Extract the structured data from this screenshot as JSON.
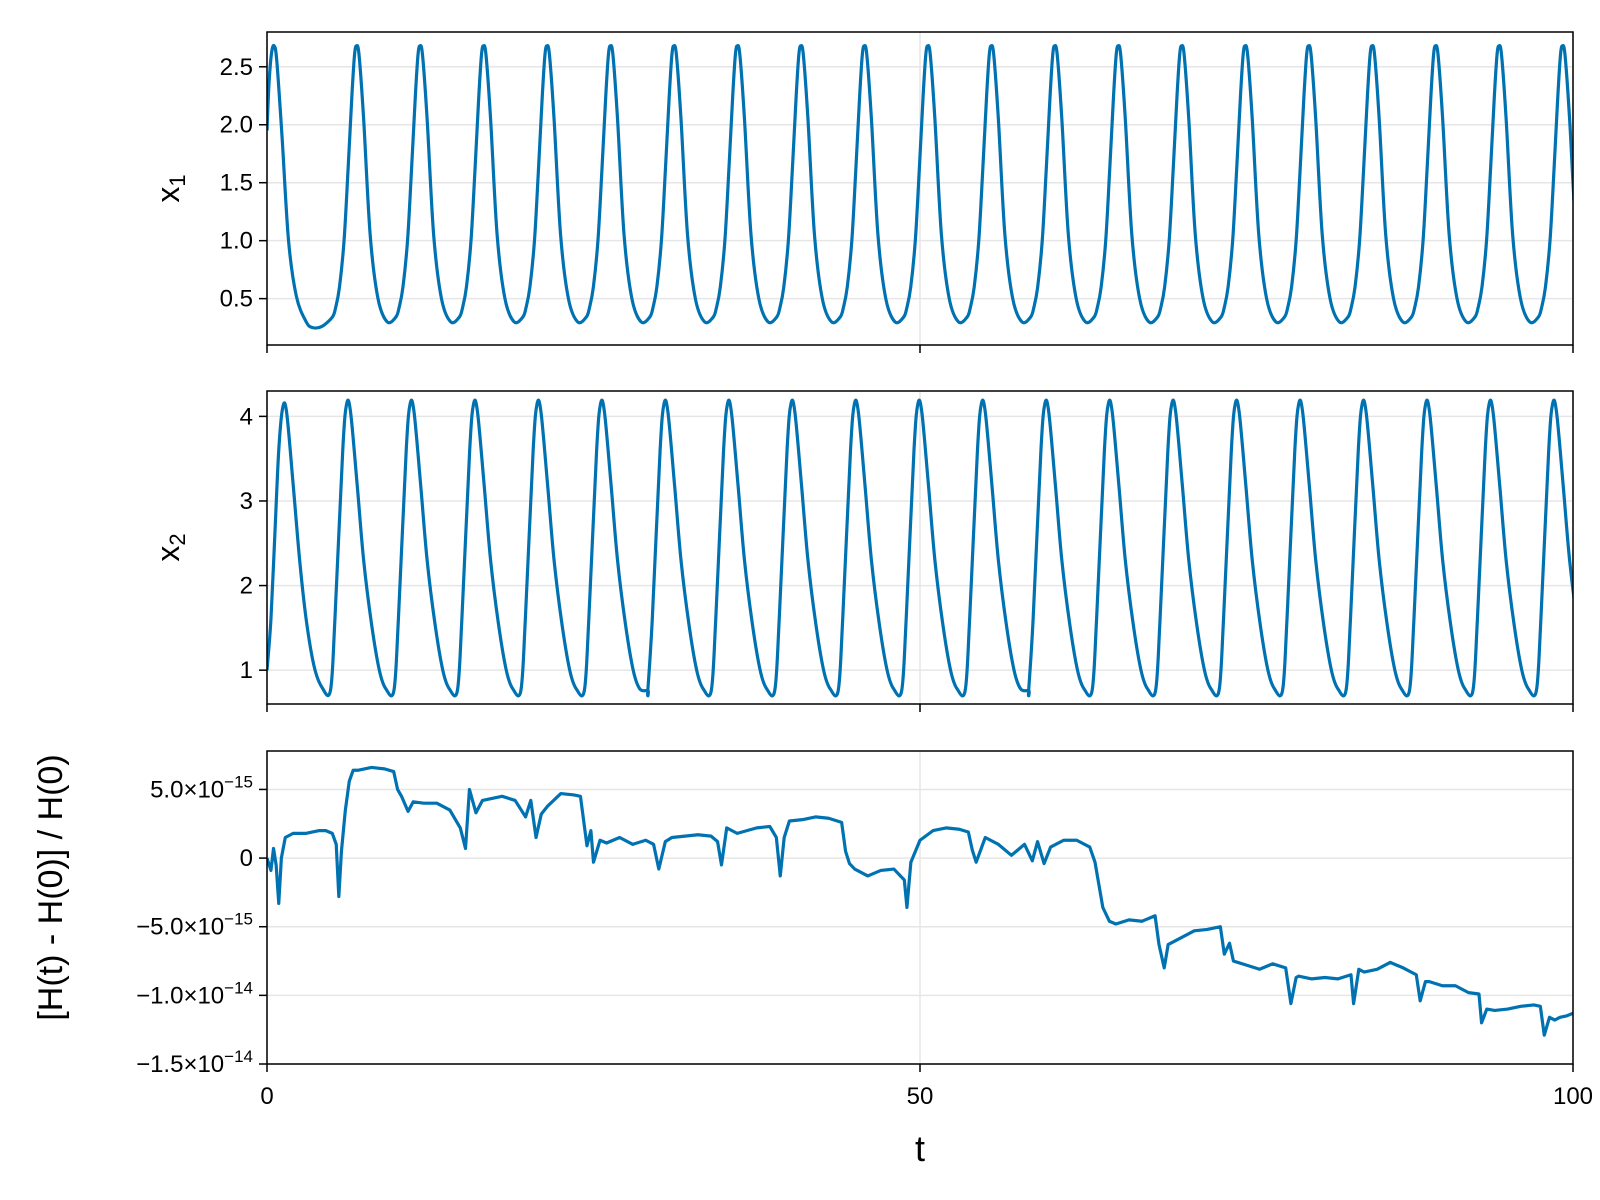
{
  "chart_data": [
    {
      "type": "line",
      "ylabel_base": "x",
      "ylabel_sub": "1",
      "xlim": [
        0,
        100
      ],
      "ylim": [
        0.1,
        2.8
      ],
      "xticks": [
        {
          "value": 0,
          "label": ""
        },
        {
          "value": 50,
          "label": ""
        },
        {
          "value": 100,
          "label": ""
        }
      ],
      "yticks": [
        {
          "value": 0.5,
          "label": "0.5"
        },
        {
          "value": 1.0,
          "label": "1.0"
        },
        {
          "value": 1.5,
          "label": "1.5"
        },
        {
          "value": 2.0,
          "label": "2.0"
        },
        {
          "value": 2.5,
          "label": "2.5"
        }
      ],
      "grid": true,
      "series": [
        {
          "color": "#0072b2",
          "x": [
            0,
            0.15,
            0.35,
            0.55,
            0.75,
            1.15,
            1.65,
            2.25,
            3.0,
            3.5,
            4.2,
            5.0,
            5.25,
            5.55,
            5.9,
            6.2,
            6.5,
            6.7,
            6.85,
            7.05,
            7.4,
            7.9,
            8.5,
            9.2,
            9.8,
            10.4,
            10.7
          ],
          "y": [
            1.95,
            2.35,
            2.62,
            2.68,
            2.55,
            1.9,
            1.0,
            0.52,
            0.3,
            0.25,
            0.26,
            0.34,
            0.42,
            0.6,
            1.0,
            1.6,
            2.25,
            2.6,
            2.68,
            2.6,
            2.05,
            1.05,
            0.5,
            0.3,
            0.25,
            0.27,
            0.34
          ],
          "period": 4.86,
          "peak_value": 2.68,
          "trough_value": 0.23
        }
      ]
    },
    {
      "type": "line",
      "ylabel_base": "x",
      "ylabel_sub": "2",
      "xlim": [
        0,
        100
      ],
      "ylim": [
        0.6,
        4.3
      ],
      "xticks": [
        {
          "value": 0,
          "label": ""
        },
        {
          "value": 50,
          "label": ""
        },
        {
          "value": 100,
          "label": ""
        }
      ],
      "yticks": [
        {
          "value": 1,
          "label": "1"
        },
        {
          "value": 2,
          "label": "2"
        },
        {
          "value": 3,
          "label": "3"
        },
        {
          "value": 4,
          "label": "4"
        }
      ],
      "grid": true,
      "series": [
        {
          "color": "#0072b2",
          "x": [
            0,
            0.3,
            0.6,
            0.9,
            1.2,
            1.5,
            2.0,
            2.5,
            3.0,
            3.6,
            4.2,
            4.86,
            5.2,
            5.8,
            6.1,
            6.4,
            6.9,
            7.4,
            8.0,
            8.6,
            9.1,
            9.72
          ],
          "y": [
            1.0,
            1.6,
            2.6,
            3.6,
            4.1,
            4.05,
            3.2,
            2.3,
            1.6,
            1.05,
            0.8,
            0.76,
            1.6,
            3.6,
            4.15,
            4.05,
            3.2,
            2.3,
            1.55,
            1.0,
            0.78,
            0.76
          ],
          "period": 4.86,
          "peak_value": 4.15,
          "trough_value": 0.76
        }
      ]
    },
    {
      "type": "line",
      "ylabel": "[H(t) - H(0)] / H(0)",
      "xlabel": "t",
      "xlim": [
        0,
        100
      ],
      "ylim": [
        -1.5e-14,
        7.8e-15
      ],
      "xticks": [
        {
          "value": 0,
          "label": "0"
        },
        {
          "value": 50,
          "label": "50"
        },
        {
          "value": 100,
          "label": "100"
        }
      ],
      "yticks": [
        {
          "value": -1.5e-14,
          "mant": "−1.5×10",
          "exp": "−14"
        },
        {
          "value": -1e-14,
          "mant": "−1.0×10",
          "exp": "−14"
        },
        {
          "value": -5e-15,
          "mant": "−5.0×10",
          "exp": "−15"
        },
        {
          "value": 0,
          "mant": "0",
          "exp": ""
        },
        {
          "value": 5e-15,
          "mant": "5.0×10",
          "exp": "−15"
        }
      ],
      "grid": true,
      "unit_scale": 1e-15,
      "series": [
        {
          "color": "#0072b2",
          "x": [
            0,
            0.3,
            0.5,
            0.7,
            0.9,
            1.1,
            1.4,
            2.0,
            3.0,
            4.0,
            4.5,
            5.0,
            5.3,
            5.5,
            5.7,
            6.0,
            6.3,
            6.6,
            7.0,
            8.0,
            9.0,
            9.7,
            10.0,
            10.3,
            10.8,
            11.2,
            12.0,
            13.0,
            14.0,
            14.8,
            15.2,
            15.5,
            16.0,
            16.5,
            18.0,
            19.0,
            19.8,
            20.2,
            20.6,
            21.0,
            21.5,
            22.5,
            23.5,
            24.0,
            24.5,
            24.8,
            25.0,
            25.5,
            26.0,
            27.0,
            28.0,
            29.0,
            29.6,
            30.0,
            30.5,
            31.0,
            33.0,
            34.0,
            34.5,
            34.8,
            35.2,
            36.0,
            37.5,
            38.5,
            39.0,
            39.3,
            39.6,
            40.0,
            41.0,
            42.0,
            43.0,
            44.0,
            44.3,
            44.6,
            45.0,
            46.0,
            47.0,
            48.0,
            48.8,
            49.0,
            49.3,
            50.0,
            51.0,
            52.0,
            53.0,
            53.7,
            54.0,
            54.3,
            55.0,
            56.0,
            57.0,
            58.0,
            58.6,
            59.0,
            59.5,
            60.0,
            61.0,
            62.0,
            63.0,
            63.4,
            64.0,
            64.5,
            65.0,
            66.0,
            67.0,
            68.0,
            68.3,
            68.7,
            69.0,
            70.0,
            71.0,
            72.0,
            73.0,
            73.3,
            73.7,
            74.0,
            75.0,
            76.0,
            77.0,
            78.0,
            78.4,
            78.8,
            79.0,
            80.0,
            81.0,
            82.0,
            83.0,
            83.2,
            83.6,
            84.0,
            85.0,
            86.0,
            87.0,
            88.0,
            88.3,
            88.7,
            89.0,
            90.0,
            91.0,
            92.0,
            92.8,
            93.0,
            93.4,
            94.0,
            95.0,
            96.0,
            97.0,
            97.5,
            97.8,
            98.2,
            98.6,
            99.0,
            99.5,
            100.0
          ],
          "y": [
            0,
            -0.9,
            0.7,
            -0.5,
            -3.3,
            0.0,
            1.5,
            1.8,
            1.8,
            2.0,
            2.0,
            1.8,
            1.0,
            -2.8,
            0.5,
            3.5,
            5.6,
            6.4,
            6.4,
            6.6,
            6.5,
            6.3,
            5.0,
            4.5,
            3.4,
            4.1,
            4.0,
            4.0,
            3.5,
            2.2,
            0.7,
            5.0,
            3.3,
            4.2,
            4.5,
            4.2,
            3.0,
            4.2,
            1.5,
            3.2,
            3.8,
            4.7,
            4.6,
            4.5,
            0.9,
            2.0,
            -0.3,
            1.3,
            1.1,
            1.5,
            1.0,
            1.3,
            1.0,
            -0.8,
            1.2,
            1.5,
            1.7,
            1.6,
            1.2,
            -0.5,
            2.2,
            1.8,
            2.2,
            2.3,
            1.5,
            -1.3,
            1.5,
            2.7,
            2.8,
            3.0,
            2.9,
            2.6,
            0.5,
            -0.4,
            -0.8,
            -1.3,
            -0.9,
            -0.8,
            -1.6,
            -3.6,
            -0.3,
            1.3,
            2.0,
            2.2,
            2.1,
            1.9,
            0.6,
            -0.3,
            1.5,
            1.0,
            0.2,
            1.0,
            -0.2,
            1.2,
            -0.4,
            0.8,
            1.3,
            1.3,
            0.8,
            -0.3,
            -3.6,
            -4.6,
            -4.8,
            -4.5,
            -4.6,
            -4.2,
            -6.3,
            -8.0,
            -6.3,
            -5.8,
            -5.3,
            -5.2,
            -5.0,
            -7.0,
            -6.2,
            -7.5,
            -7.8,
            -8.1,
            -7.7,
            -8.0,
            -10.6,
            -8.7,
            -8.6,
            -8.8,
            -8.7,
            -8.8,
            -8.5,
            -10.6,
            -8.1,
            -8.3,
            -8.1,
            -7.6,
            -8.0,
            -8.5,
            -10.4,
            -9.0,
            -9.0,
            -9.3,
            -9.3,
            -9.8,
            -9.9,
            -12.0,
            -11.0,
            -11.1,
            -11.0,
            -10.8,
            -10.7,
            -10.8,
            -12.9,
            -11.6,
            -11.8,
            -11.6,
            -11.5,
            -11.3
          ]
        }
      ]
    }
  ]
}
